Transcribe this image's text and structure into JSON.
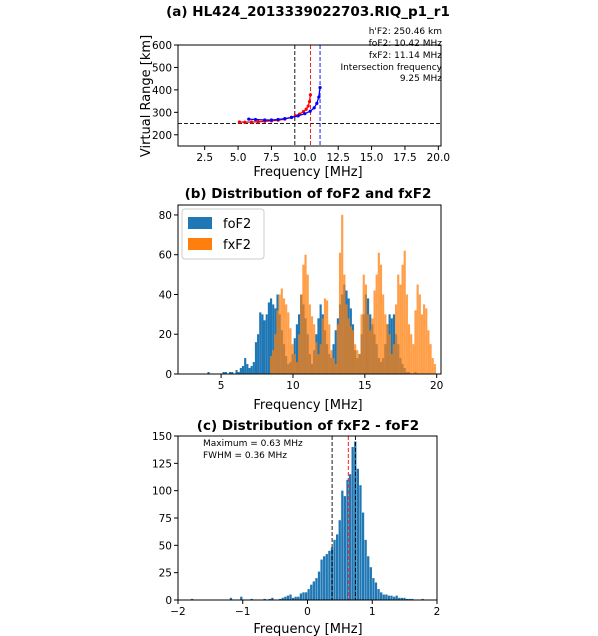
{
  "charts": [
    {
      "id": "a",
      "type": "line",
      "title": "(a) HL424_2013339022703.RIQ_p1_r1",
      "xlabel": "Frequency [MHz]",
      "ylabel": "Virtual Range [km]",
      "xlim": [
        0.5,
        20.2
      ],
      "ylim": [
        150,
        600
      ],
      "xticks": [
        "2.5",
        "5.0",
        "7.5",
        "10.0",
        "12.5",
        "15.0",
        "17.5",
        "20.0"
      ],
      "xtick_values": [
        2.5,
        5.0,
        7.5,
        10.0,
        12.5,
        15.0,
        17.5,
        20.0
      ],
      "yticks": [
        "200",
        "300",
        "400",
        "500",
        "600"
      ],
      "ytick_values": [
        200,
        300,
        400,
        500,
        600
      ],
      "annotations": [
        {
          "text": "h'F2: 250.46 km",
          "color": "#000000"
        },
        {
          "text": "foF2: 10.42 MHz",
          "color": "#ff0000"
        },
        {
          "text": "fxF2: 11.14 MHz",
          "color": "#0000ff"
        },
        {
          "text": "Intersection frequency",
          "color": "#000000"
        },
        {
          "text": "9.25 MHz",
          "color": "#000000"
        }
      ],
      "vlines": [
        {
          "x": 9.25,
          "color": "#000000"
        },
        {
          "x": 10.42,
          "color": "#ff0000"
        },
        {
          "x": 11.14,
          "color": "#0000ff"
        }
      ],
      "hline": {
        "y": 250.46,
        "color": "#000000"
      },
      "series": [
        {
          "color": "#ff0000",
          "x": [
            5.1,
            5.5,
            6.0,
            6.5,
            7.0,
            7.5,
            8.0,
            8.5,
            9.0,
            9.3,
            9.6,
            9.9,
            10.1,
            10.25,
            10.35,
            10.42
          ],
          "y": [
            257,
            256,
            257,
            258,
            260,
            262,
            265,
            270,
            278,
            285,
            292,
            303,
            314,
            328,
            348,
            378
          ]
        },
        {
          "color": "#0000ff",
          "x": [
            5.8,
            6.3,
            7.0,
            7.5,
            8.0,
            8.5,
            9.0,
            9.5,
            10.0,
            10.4,
            10.7,
            10.9,
            11.05,
            11.14
          ],
          "y": [
            270,
            268,
            266,
            266,
            268,
            272,
            277,
            284,
            294,
            305,
            320,
            340,
            368,
            410
          ]
        }
      ]
    },
    {
      "id": "b",
      "type": "bar",
      "title": "(b) Distribution of foF2 and fxF2",
      "xlabel": "Frequency [MHz]",
      "xlim": [
        2,
        20.3
      ],
      "ylim": [
        0,
        85
      ],
      "xticks": [
        "5",
        "10",
        "15",
        "20"
      ],
      "xtick_values": [
        5,
        10,
        15,
        20
      ],
      "yticks": [
        "0",
        "20",
        "40",
        "60",
        "80"
      ],
      "ytick_values": [
        0,
        20,
        40,
        60,
        80
      ],
      "legend": "top-left",
      "bin_start": 3.0,
      "bin_width": 0.15,
      "series": [
        {
          "name": "foF2",
          "color": "#1f77b4",
          "values": [
            0,
            0,
            0,
            0,
            0,
            0,
            0,
            1,
            0,
            0,
            0,
            0,
            0,
            0,
            1,
            1,
            0,
            1,
            1,
            0,
            2,
            1,
            3,
            4,
            8,
            5,
            3,
            4,
            6,
            16,
            20,
            31,
            30,
            27,
            30,
            36,
            38,
            35,
            33,
            40,
            30,
            22,
            15,
            9,
            5,
            6,
            10,
            18,
            25,
            30,
            40,
            35,
            28,
            20,
            10,
            5,
            12,
            20,
            28,
            35,
            30,
            22,
            15,
            10,
            8,
            15,
            22,
            28,
            35,
            40,
            45,
            42,
            38,
            33,
            25,
            12,
            8,
            10,
            20,
            30,
            40,
            38,
            30,
            25,
            20,
            15,
            8,
            6,
            8,
            15,
            25,
            30,
            28,
            30,
            20,
            15,
            8,
            5,
            3,
            1,
            1,
            0,
            0,
            1,
            0,
            0,
            0,
            0,
            0,
            0,
            0,
            0
          ]
        },
        {
          "name": "fxF2",
          "color": "#ff7f0e",
          "values": [
            0,
            0,
            0,
            0,
            0,
            0,
            0,
            0,
            0,
            0,
            0,
            0,
            0,
            0,
            0,
            0,
            0,
            0,
            0,
            0,
            0,
            0,
            0,
            0,
            0,
            0,
            0,
            0,
            0,
            0,
            0,
            0,
            0,
            0,
            0,
            0,
            9,
            12,
            20,
            32,
            40,
            43,
            38,
            35,
            31,
            23,
            15,
            10,
            6,
            20,
            40,
            55,
            60,
            50,
            35,
            29,
            25,
            16,
            10,
            15,
            28,
            38,
            37,
            25,
            12,
            8,
            5,
            25,
            61,
            80,
            50,
            35,
            28,
            24,
            22,
            15,
            12,
            10,
            30,
            50,
            45,
            30,
            22,
            28,
            42,
            50,
            61,
            55,
            40,
            30,
            25,
            20,
            10,
            15,
            35,
            50,
            45,
            55,
            62,
            40,
            25,
            20,
            15,
            32,
            45,
            40,
            30,
            35,
            33,
            22,
            15,
            8,
            5
          ]
        }
      ]
    },
    {
      "id": "c",
      "type": "bar",
      "title": "(c) Distribution of fxF2 - foF2",
      "xlabel": "Frequency [MHz]",
      "xlim": [
        -2,
        2
      ],
      "ylim": [
        0,
        150
      ],
      "xticks": [
        "−2",
        "−1",
        "0",
        "1",
        "2"
      ],
      "xtick_values": [
        -2,
        -1,
        0,
        1,
        2
      ],
      "yticks": [
        "0",
        "25",
        "50",
        "75",
        "100",
        "125",
        "150"
      ],
      "ytick_values": [
        0,
        25,
        50,
        75,
        100,
        125,
        150
      ],
      "annotations": [
        {
          "text": "Maximum = 0.63 MHz",
          "color": "#000000"
        },
        {
          "text": "FWHM = 0.36 MHz",
          "color": "#000000"
        }
      ],
      "vlines": [
        {
          "x": 0.38,
          "color": "#000000"
        },
        {
          "x": 0.63,
          "color": "#ff0000"
        },
        {
          "x": 0.74,
          "color": "#000000"
        }
      ],
      "bin_start": -1.8,
      "bin_width": 0.04,
      "series": [
        {
          "name": "",
          "color": "#1f77b4",
          "values": [
            1,
            0,
            0,
            0,
            0,
            0,
            0,
            0,
            0,
            0,
            0,
            0,
            0,
            0,
            0,
            2,
            0,
            0,
            0,
            3,
            0,
            0,
            0,
            1,
            0,
            0,
            0,
            0,
            1,
            0,
            1,
            2,
            0,
            0,
            1,
            2,
            3,
            4,
            5,
            2,
            3,
            3,
            6,
            7,
            7,
            10,
            14,
            17,
            20,
            26,
            37,
            40,
            42,
            45,
            48,
            55,
            60,
            73,
            100,
            95,
            110,
            115,
            140,
            145,
            120,
            105,
            80,
            55,
            40,
            30,
            20,
            16,
            10,
            7,
            5,
            5,
            4,
            4,
            3,
            4,
            2,
            2,
            2,
            1,
            1,
            1,
            0,
            0,
            0,
            1
          ]
        }
      ]
    }
  ]
}
